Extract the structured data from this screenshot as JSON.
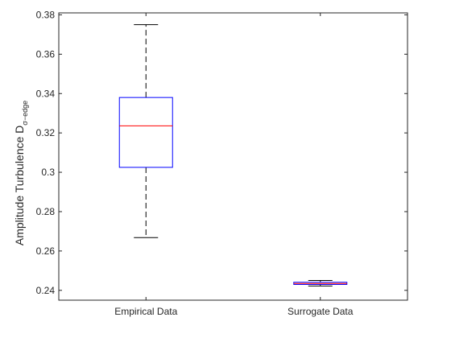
{
  "chart_data": {
    "type": "box",
    "title": "",
    "xlabel": "",
    "ylabel": {
      "main": "Amplitude Turbulence D",
      "subscript": "σ−edge"
    },
    "ylim": [
      0.235,
      0.381
    ],
    "yticks": [
      0.24,
      0.26,
      0.28,
      0.3,
      0.32,
      0.34,
      0.36,
      0.38
    ],
    "ytick_labels": [
      "0.24",
      "0.26",
      "0.28",
      "0.3",
      "0.32",
      "0.34",
      "0.36",
      "0.38"
    ],
    "categories": [
      "Empirical Data",
      "Surrogate Data"
    ],
    "boxes": [
      {
        "category": "Empirical Data",
        "whisker_low": 0.2668,
        "q1": 0.3025,
        "median": 0.3236,
        "q3": 0.338,
        "whisker_high": 0.375
      },
      {
        "category": "Surrogate Data",
        "whisker_low": 0.2422,
        "q1": 0.243,
        "median": 0.2435,
        "q3": 0.2441,
        "whisker_high": 0.245
      }
    ],
    "grid": false,
    "colors": {
      "box": "#0000ff",
      "median": "#ff0000",
      "whisker": "#000000",
      "axis": "#262626"
    }
  }
}
